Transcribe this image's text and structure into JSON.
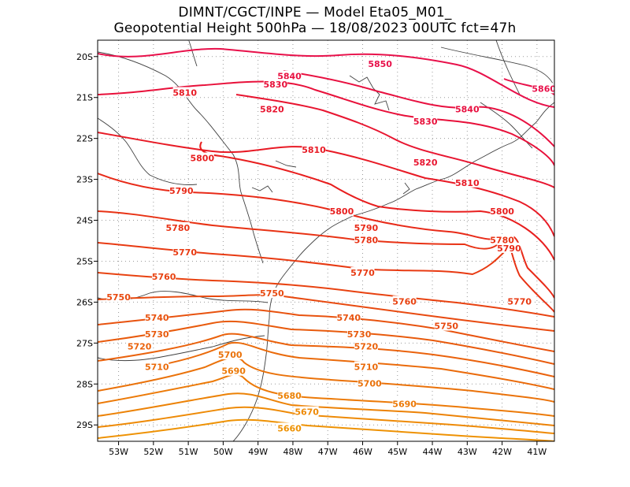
{
  "header": {
    "line1": "DIMNT/CGCT/INPE  —   Model Eta05_M01_",
    "line2": "Geopotential Height 500hPa  —   18/08/2023 00UTC fct=47h"
  },
  "map": {
    "lon_range": [
      -53.6,
      -40.5
    ],
    "lat_range": [
      -29.4,
      -19.6
    ],
    "x_ticks": [
      {
        "lon": -53,
        "label": "53W"
      },
      {
        "lon": -52,
        "label": "52W"
      },
      {
        "lon": -51,
        "label": "51W"
      },
      {
        "lon": -50,
        "label": "50W"
      },
      {
        "lon": -49,
        "label": "49W"
      },
      {
        "lon": -48,
        "label": "48W"
      },
      {
        "lon": -47,
        "label": "47W"
      },
      {
        "lon": -46,
        "label": "46W"
      },
      {
        "lon": -45,
        "label": "45W"
      },
      {
        "lon": -44,
        "label": "44W"
      },
      {
        "lon": -43,
        "label": "43W"
      },
      {
        "lon": -42,
        "label": "42W"
      },
      {
        "lon": -41,
        "label": "41W"
      }
    ],
    "y_ticks": [
      {
        "lat": -20,
        "label": "20S"
      },
      {
        "lat": -21,
        "label": "21S"
      },
      {
        "lat": -22,
        "label": "22S"
      },
      {
        "lat": -23,
        "label": "23S"
      },
      {
        "lat": -24,
        "label": "24S"
      },
      {
        "lat": -25,
        "label": "25S"
      },
      {
        "lat": -26,
        "label": "26S"
      },
      {
        "lat": -27,
        "label": "27S"
      },
      {
        "lat": -28,
        "label": "28S"
      },
      {
        "lat": -29,
        "label": "29S"
      }
    ],
    "contour_labels": [
      {
        "text": "5850",
        "lon": -45.5,
        "lat": -20.2,
        "color": "#e8104a"
      },
      {
        "text": "5860",
        "lon": -40.8,
        "lat": -20.8,
        "color": "#e8104a"
      },
      {
        "text": "5840",
        "lon": -48.1,
        "lat": -20.5,
        "color": "#e81040"
      },
      {
        "text": "5840",
        "lon": -43.0,
        "lat": -21.3,
        "color": "#e81040"
      },
      {
        "text": "5830",
        "lon": -48.5,
        "lat": -20.7,
        "color": "#e8103a"
      },
      {
        "text": "5830",
        "lon": -44.2,
        "lat": -21.6,
        "color": "#e8103a"
      },
      {
        "text": "5820",
        "lon": -48.6,
        "lat": -21.3,
        "color": "#e81530"
      },
      {
        "text": "5820",
        "lon": -44.2,
        "lat": -22.6,
        "color": "#e81530"
      },
      {
        "text": "5810",
        "lon": -51.1,
        "lat": -20.9,
        "color": "#e81a25"
      },
      {
        "text": "5810",
        "lon": -47.4,
        "lat": -22.3,
        "color": "#e81a25"
      },
      {
        "text": "5810",
        "lon": -43.0,
        "lat": -23.1,
        "color": "#e81a25"
      },
      {
        "text": "5800",
        "lon": -50.6,
        "lat": -22.5,
        "color": "#e81e1e"
      },
      {
        "text": "5800",
        "lon": -46.6,
        "lat": -23.8,
        "color": "#e81e1e"
      },
      {
        "text": "5800",
        "lon": -42.0,
        "lat": -23.8,
        "color": "#e81e1e"
      },
      {
        "text": "5790",
        "lon": -51.2,
        "lat": -23.3,
        "color": "#e82a18"
      },
      {
        "text": "5790",
        "lon": -45.9,
        "lat": -24.2,
        "color": "#e82a18"
      },
      {
        "text": "5790",
        "lon": -41.8,
        "lat": -24.7,
        "color": "#e82a18"
      },
      {
        "text": "5780",
        "lon": -51.3,
        "lat": -24.2,
        "color": "#e83214"
      },
      {
        "text": "5780",
        "lon": -45.9,
        "lat": -24.5,
        "color": "#e83214"
      },
      {
        "text": "5780",
        "lon": -42.0,
        "lat": -24.5,
        "color": "#e83214"
      },
      {
        "text": "5770",
        "lon": -51.1,
        "lat": -24.8,
        "color": "#e83a12"
      },
      {
        "text": "5770",
        "lon": -46.0,
        "lat": -25.3,
        "color": "#e83a12"
      },
      {
        "text": "5770",
        "lon": -41.5,
        "lat": -26.0,
        "color": "#e83a12"
      },
      {
        "text": "5760",
        "lon": -51.7,
        "lat": -25.4,
        "color": "#e84210"
      },
      {
        "text": "5760",
        "lon": -44.8,
        "lat": -26.0,
        "color": "#e84210"
      },
      {
        "text": "5750",
        "lon": -53.0,
        "lat": -25.9,
        "color": "#e84a10"
      },
      {
        "text": "5750",
        "lon": -48.6,
        "lat": -25.8,
        "color": "#e84a10"
      },
      {
        "text": "5750",
        "lon": -43.6,
        "lat": -26.6,
        "color": "#e84a10"
      },
      {
        "text": "5740",
        "lon": -51.9,
        "lat": -26.4,
        "color": "#e8520e"
      },
      {
        "text": "5740",
        "lon": -46.4,
        "lat": -26.4,
        "color": "#e8520e"
      },
      {
        "text": "5730",
        "lon": -51.9,
        "lat": -26.8,
        "color": "#e85a0c"
      },
      {
        "text": "5730",
        "lon": -46.1,
        "lat": -26.8,
        "color": "#e85a0c"
      },
      {
        "text": "5720",
        "lon": -52.4,
        "lat": -27.1,
        "color": "#ea620c"
      },
      {
        "text": "5720",
        "lon": -45.9,
        "lat": -27.1,
        "color": "#ea620c"
      },
      {
        "text": "5710",
        "lon": -51.9,
        "lat": -27.6,
        "color": "#ea6a0a"
      },
      {
        "text": "5710",
        "lon": -45.9,
        "lat": -27.6,
        "color": "#ea6a0a"
      },
      {
        "text": "5700",
        "lon": -49.8,
        "lat": -27.3,
        "color": "#ea720a"
      },
      {
        "text": "5700",
        "lon": -45.8,
        "lat": -28.0,
        "color": "#ea720a"
      },
      {
        "text": "5690",
        "lon": -49.7,
        "lat": -27.7,
        "color": "#ec7a08"
      },
      {
        "text": "5690",
        "lon": -44.8,
        "lat": -28.5,
        "color": "#ec7a08"
      },
      {
        "text": "5680",
        "lon": -48.1,
        "lat": -28.3,
        "color": "#ec8206"
      },
      {
        "text": "5670",
        "lon": -47.6,
        "lat": -28.7,
        "color": "#ee8a06"
      },
      {
        "text": "5660",
        "lon": -48.1,
        "lat": -29.1,
        "color": "#ee9204"
      }
    ]
  },
  "colors": {
    "coast": "#404040",
    "grid": "#9a9a9a",
    "frame": "#000000"
  }
}
